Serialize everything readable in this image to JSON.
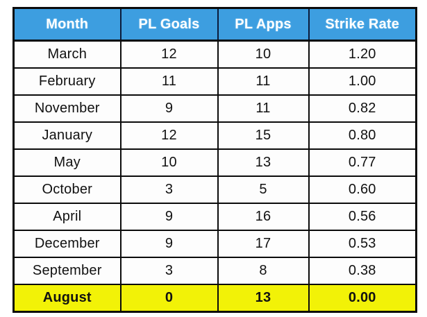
{
  "chart_data": {
    "type": "table",
    "title": "",
    "columns": [
      "Month",
      "PL Goals",
      "PL Apps",
      "Strike Rate"
    ],
    "rows": [
      [
        "March",
        "12",
        "10",
        "1.20"
      ],
      [
        "February",
        "11",
        "11",
        "1.00"
      ],
      [
        "November",
        "9",
        "11",
        "0.82"
      ],
      [
        "January",
        "12",
        "15",
        "0.80"
      ],
      [
        "May",
        "10",
        "13",
        "0.77"
      ],
      [
        "October",
        "3",
        "5",
        "0.60"
      ],
      [
        "April",
        "9",
        "16",
        "0.56"
      ],
      [
        "December",
        "9",
        "17",
        "0.53"
      ],
      [
        "September",
        "3",
        "8",
        "0.38"
      ],
      [
        "August",
        "0",
        "13",
        "0.00"
      ]
    ],
    "highlight_month": "August",
    "sort_order": "Strike Rate descending"
  },
  "colors": {
    "header_bg": "#3d9ee0",
    "header_text": "#ffffff",
    "highlight_bg": "#f2f207",
    "grid_border": "#0b0b0b",
    "cell_bg": "#fdfdfd",
    "cell_text": "#111111"
  }
}
